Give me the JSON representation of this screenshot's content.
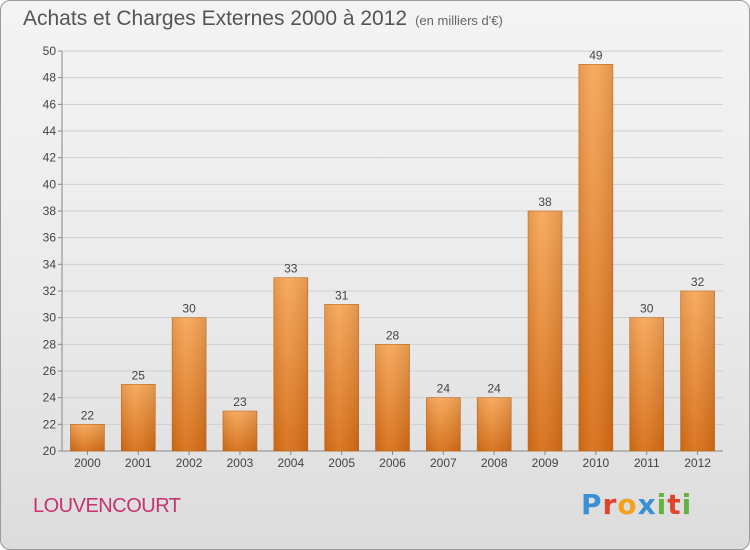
{
  "header": {
    "title": "Achats et Charges Externes 2000 à 2012",
    "subtitle": "(en milliers d'€)"
  },
  "footer": {
    "place": "LOUVENCOURT",
    "logo_text": "Proxiti"
  },
  "colors": {
    "bar_top": "#f7a657",
    "bar_bottom": "#d86e16",
    "accent_place": "#c8326e"
  },
  "chart_data": {
    "type": "bar",
    "title": "Achats et Charges Externes 2000 à 2012",
    "subtitle": "(en milliers d'€)",
    "categories": [
      "2000",
      "2001",
      "2002",
      "2003",
      "2004",
      "2005",
      "2006",
      "2007",
      "2008",
      "2009",
      "2010",
      "2011",
      "2012"
    ],
    "values": [
      22,
      25,
      30,
      23,
      33,
      31,
      28,
      24,
      24,
      38,
      49,
      30,
      32
    ],
    "ylim": [
      20,
      50
    ],
    "yticks": [
      20,
      22,
      24,
      26,
      28,
      30,
      32,
      34,
      36,
      38,
      40,
      42,
      44,
      46,
      48,
      50
    ],
    "grid": true
  }
}
